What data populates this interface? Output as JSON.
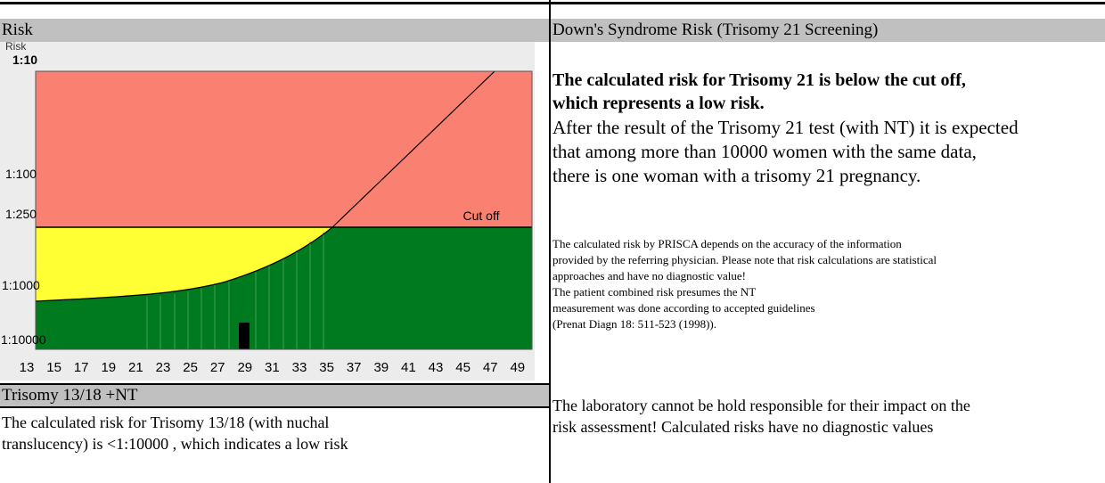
{
  "left": {
    "risk_header": "Risk",
    "chart": {
      "y_axis_label": "Risk",
      "y_ticks": [
        "1:10",
        "1:100",
        "1:250",
        "1:1000",
        "1:10000"
      ],
      "cutoff_label": "Cut off",
      "x_ticks": [
        "13",
        "15",
        "17",
        "19",
        "21",
        "23",
        "25",
        "27",
        "29",
        "31",
        "33",
        "35",
        "37",
        "39",
        "41",
        "43",
        "45",
        "47",
        "49"
      ]
    },
    "trisomy_header": "Trisomy 13/18 +NT",
    "trisomy_text": [
      "The calculated risk for Trisomy 13/18 (with nuchal",
      "translucency) is <1:10000 , which indicates a low risk"
    ]
  },
  "right": {
    "header": "Down's Syndrome Risk (Trisomy 21 Screening)",
    "bold_lines": [
      "The calculated risk for Trisomy 21 is below the cut off,",
      "which represents a low risk."
    ],
    "body_lines": [
      "After the result of the Trisomy 21 test (with NT) it is expected",
      "that among more than 10000 women with the same data,",
      "there is one woman with a trisomy 21 pregnancy."
    ],
    "small_lines": [
      "The calculated risk by PRISCA depends on the accuracy of the information",
      "provided by the referring physician. Please note that risk calculations are statistical",
      "approaches and have no diagnostic value!",
      "The patient combined risk presumes the NT",
      "measurement was done according to accepted guidelines",
      "(Prenat Diagn 18: 511-523 (1998))."
    ],
    "footer_lines": [
      "The laboratory cannot be hold responsible for their impact on the",
      "risk assessment! Calculated risks have no diagnostic values"
    ]
  }
}
